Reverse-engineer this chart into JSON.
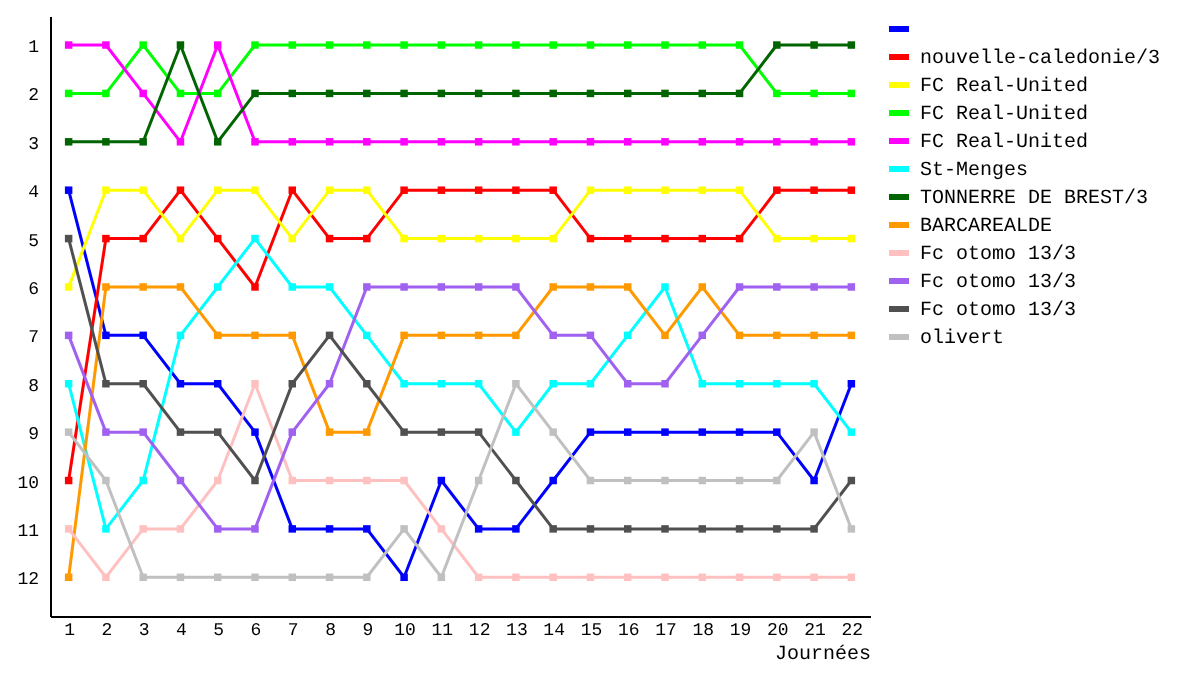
{
  "chart_data": {
    "type": "line",
    "xlabel": "Journées",
    "x": [
      1,
      2,
      3,
      4,
      5,
      6,
      7,
      8,
      9,
      10,
      11,
      12,
      13,
      14,
      15,
      16,
      17,
      18,
      19,
      20,
      21,
      22
    ],
    "xlim": [
      0.5,
      22.5
    ],
    "xticks": [
      1,
      2,
      3,
      4,
      5,
      6,
      7,
      8,
      9,
      10,
      11,
      12,
      13,
      14,
      15,
      16,
      17,
      18,
      19,
      20,
      21,
      22
    ],
    "ylim": [
      12.8,
      0.4
    ],
    "yticks": [
      1,
      2,
      3,
      4,
      5,
      6,
      7,
      8,
      9,
      10,
      11,
      12
    ],
    "grid": false,
    "legend": "right",
    "marker": "square",
    "line_style": "solid",
    "series": [
      {
        "color": "#0000ff",
        "values": [
          4,
          7,
          7,
          8,
          8,
          9,
          11,
          11,
          11,
          12,
          10,
          11,
          11,
          10,
          9,
          9,
          9,
          9,
          9,
          9,
          10,
          8
        ]
      },
      {
        "name": "nouvelle-caledonie/3",
        "color": "#ff0000",
        "values": [
          10,
          5,
          5,
          4,
          5,
          6,
          4,
          5,
          5,
          4,
          4,
          4,
          4,
          4,
          5,
          5,
          5,
          5,
          5,
          4,
          4,
          4
        ]
      },
      {
        "name": "FC Real-United",
        "color": "#ffff00",
        "values": [
          6,
          4,
          4,
          5,
          4,
          4,
          5,
          4,
          4,
          5,
          5,
          5,
          5,
          5,
          4,
          4,
          4,
          4,
          4,
          5,
          5,
          5
        ]
      },
      {
        "name": "FC Real-United",
        "color": "#00ff00",
        "values": [
          2,
          2,
          1,
          2,
          2,
          1,
          1,
          1,
          1,
          1,
          1,
          1,
          1,
          1,
          1,
          1,
          1,
          1,
          1,
          2,
          2,
          2
        ]
      },
      {
        "name": "FC Real-United",
        "color": "#ff00ff",
        "values": [
          1,
          1,
          2,
          3,
          1,
          3,
          3,
          3,
          3,
          3,
          3,
          3,
          3,
          3,
          3,
          3,
          3,
          3,
          3,
          3,
          3,
          3
        ]
      },
      {
        "name": "St-Menges",
        "color": "#00ffff",
        "values": [
          8,
          11,
          10,
          7,
          6,
          5,
          6,
          6,
          7,
          8,
          8,
          8,
          9,
          8,
          8,
          7,
          6,
          8,
          8,
          8,
          8,
          9
        ]
      },
      {
        "name": "TONNERRE DE BREST/3",
        "color": "#006400",
        "values": [
          3,
          3,
          3,
          1,
          3,
          2,
          2,
          2,
          2,
          2,
          2,
          2,
          2,
          2,
          2,
          2,
          2,
          2,
          2,
          1,
          1,
          1
        ]
      },
      {
        "name": "BARCAREALDE",
        "color": "#ff9900",
        "values": [
          12,
          6,
          6,
          6,
          7,
          7,
          7,
          9,
          9,
          7,
          7,
          7,
          7,
          6,
          6,
          6,
          7,
          6,
          7,
          7,
          7,
          7
        ]
      },
      {
        "name": "Fc otomo 13/3",
        "color": "#ffc0c0",
        "values": [
          11,
          12,
          11,
          11,
          10,
          8,
          10,
          10,
          10,
          10,
          11,
          12,
          12,
          12,
          12,
          12,
          12,
          12,
          12,
          12,
          12,
          12
        ]
      },
      {
        "name": "Fc otomo 13/3",
        "color": "#a060f0",
        "values": [
          7,
          9,
          9,
          10,
          11,
          11,
          9,
          8,
          6,
          6,
          6,
          6,
          6,
          7,
          7,
          8,
          8,
          7,
          6,
          6,
          6,
          6
        ]
      },
      {
        "name": "Fc otomo 13/3",
        "color": "#505050",
        "values": [
          5,
          8,
          8,
          9,
          9,
          10,
          8,
          7,
          8,
          9,
          9,
          9,
          10,
          11,
          11,
          11,
          11,
          11,
          11,
          11,
          11,
          10
        ]
      },
      {
        "name": "olivert",
        "color": "#c0c0c0",
        "values": [
          9,
          10,
          12,
          12,
          12,
          12,
          12,
          12,
          12,
          11,
          12,
          10,
          8,
          9,
          10,
          10,
          10,
          10,
          10,
          10,
          9,
          11
        ]
      }
    ]
  }
}
